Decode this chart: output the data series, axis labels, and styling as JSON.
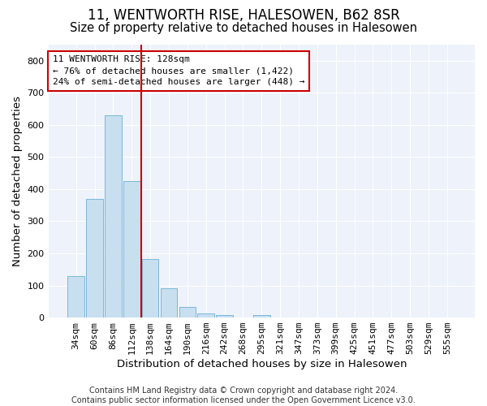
{
  "title": "11, WENTWORTH RISE, HALESOWEN, B62 8SR",
  "subtitle": "Size of property relative to detached houses in Halesowen",
  "xlabel": "Distribution of detached houses by size in Halesowen",
  "ylabel": "Number of detached properties",
  "categories": [
    "34sqm",
    "60sqm",
    "86sqm",
    "112sqm",
    "138sqm",
    "164sqm",
    "190sqm",
    "216sqm",
    "242sqm",
    "268sqm",
    "295sqm",
    "321sqm",
    "347sqm",
    "373sqm",
    "399sqm",
    "425sqm",
    "451sqm",
    "477sqm",
    "503sqm",
    "529sqm",
    "555sqm"
  ],
  "values": [
    128,
    370,
    630,
    425,
    183,
    90,
    32,
    14,
    8,
    0,
    7,
    0,
    0,
    0,
    0,
    0,
    0,
    0,
    0,
    0,
    0
  ],
  "bar_color": "#c8dff0",
  "bar_edge_color": "#6aafd6",
  "vline_color": "#cc0000",
  "annotation_text": "11 WENTWORTH RISE: 128sqm\n← 76% of detached houses are smaller (1,422)\n24% of semi-detached houses are larger (448) →",
  "annotation_box_color": "white",
  "annotation_box_edge": "#cc0000",
  "ylim": [
    0,
    850
  ],
  "yticks": [
    0,
    100,
    200,
    300,
    400,
    500,
    600,
    700,
    800
  ],
  "footer": "Contains HM Land Registry data © Crown copyright and database right 2024.\nContains public sector information licensed under the Open Government Licence v3.0.",
  "plot_bg_color": "#eef2fa",
  "fig_bg_color": "white",
  "title_fontsize": 12,
  "subtitle_fontsize": 10.5,
  "axis_label_fontsize": 9.5,
  "tick_fontsize": 8,
  "annot_fontsize": 8,
  "footer_fontsize": 7
}
